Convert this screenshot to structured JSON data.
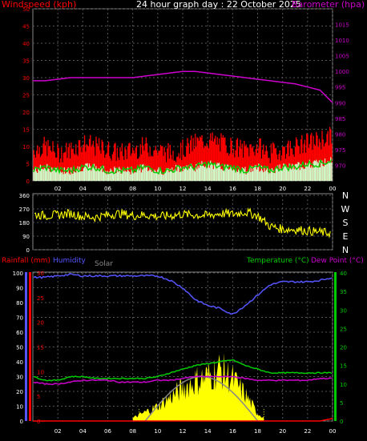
{
  "header": {
    "title": "24 hour graph day : 22 October 2025",
    "left_label": "Windspeed (kph)",
    "right_label": "Barometer (hpa)"
  },
  "colors": {
    "wind_gust": "#ff0000",
    "wind_avg": "#00cc00",
    "wind_min": "#ccffcc",
    "barometer": "#cc00cc",
    "direction": "#ffff00",
    "rain": "#ff0000",
    "humidity": "#5555ff",
    "solar": "#ffff00",
    "solar_max": "#888888",
    "temperature": "#00cc00",
    "dewpoint": "#cc00cc",
    "grid": "#555555",
    "axis_text": "#ffffff"
  },
  "x_ticks": [
    "02",
    "04",
    "06",
    "08",
    "10",
    "12",
    "14",
    "16",
    "18",
    "20",
    "22",
    "00"
  ],
  "chart_data": [
    {
      "type": "line",
      "title": "24 hour graph day : 22 October 2025",
      "ylabel": "Windspeed (kph)",
      "ylabel_right": "Barometer (hpa)",
      "ylim": [
        0,
        50
      ],
      "ylim_right": [
        965,
        1020
      ],
      "yticks": [
        0,
        5,
        10,
        15,
        20,
        25,
        30,
        35,
        40,
        45,
        50
      ],
      "yticks_right": [
        970,
        975,
        980,
        985,
        990,
        995,
        1000,
        1005,
        1010,
        1015
      ],
      "x": [
        0,
        1,
        2,
        3,
        4,
        5,
        6,
        7,
        8,
        9,
        10,
        11,
        12,
        13,
        14,
        15,
        16,
        17,
        18,
        19,
        20,
        21,
        22,
        23,
        24
      ],
      "series": [
        {
          "name": "Wind gust",
          "axis": "left",
          "values": [
            9,
            10,
            8,
            9,
            11,
            10,
            9,
            8,
            9,
            10,
            9,
            8,
            9,
            11,
            12,
            11,
            10,
            9,
            10,
            8,
            9,
            10,
            11,
            12,
            13
          ]
        },
        {
          "name": "Wind avg",
          "axis": "left",
          "values": [
            3,
            4,
            3,
            3,
            4,
            4,
            3,
            3,
            3,
            4,
            3,
            3,
            4,
            4,
            5,
            4,
            4,
            3,
            4,
            3,
            4,
            4,
            5,
            5,
            6
          ]
        },
        {
          "name": "Wind min",
          "axis": "left",
          "values": [
            1,
            1,
            1,
            1,
            1,
            1,
            1,
            1,
            1,
            1,
            1,
            1,
            1,
            1,
            2,
            1,
            1,
            1,
            1,
            1,
            1,
            1,
            1,
            2,
            2
          ]
        },
        {
          "name": "Barometer",
          "axis": "right",
          "values": [
            997,
            997,
            997.5,
            998,
            998,
            998,
            998,
            998,
            998,
            998.5,
            999,
            999.5,
            1000,
            1000,
            999.5,
            999,
            998.5,
            998,
            997.5,
            997,
            996.5,
            996,
            995,
            994,
            990
          ]
        }
      ]
    },
    {
      "type": "scatter",
      "ylim": [
        0,
        360
      ],
      "yticks": [
        0,
        90,
        180,
        270,
        360
      ],
      "y_compass": [
        "N",
        "W",
        "S",
        "E",
        "N"
      ],
      "x": [
        0,
        1,
        2,
        3,
        4,
        5,
        6,
        7,
        8,
        9,
        10,
        11,
        12,
        13,
        14,
        15,
        16,
        17,
        18,
        19,
        20,
        21,
        22,
        23,
        24
      ],
      "values": [
        235,
        225,
        230,
        240,
        220,
        215,
        230,
        240,
        225,
        230,
        220,
        225,
        235,
        230,
        225,
        240,
        235,
        250,
        225,
        155,
        135,
        135,
        125,
        115,
        110
      ]
    },
    {
      "type": "line",
      "ylabel": "Rainfall (mm)",
      "ylabel_humidity": "Humidity",
      "ylabel_solar": "Solar",
      "ylabel_right": "Temperature (°C)",
      "ylabel_right2": "Dew Point (°C)",
      "ylim_rain": [
        0,
        30
      ],
      "yticks_rain": [
        0,
        5,
        10,
        15,
        20,
        25,
        30
      ],
      "ylim_humidity": [
        0,
        100
      ],
      "yticks_humidity": [
        0,
        10,
        20,
        30,
        40,
        50,
        60,
        70,
        80,
        90,
        100
      ],
      "ylim_temp": [
        0,
        40
      ],
      "yticks_temp": [
        0,
        5,
        10,
        15,
        20,
        25,
        30,
        35,
        40
      ],
      "x": [
        0,
        1,
        2,
        3,
        4,
        5,
        6,
        7,
        8,
        9,
        10,
        11,
        12,
        13,
        14,
        15,
        16,
        17,
        18,
        19,
        20,
        21,
        22,
        23,
        24
      ],
      "series": [
        {
          "name": "Humidity",
          "axis": "humidity",
          "values": [
            97,
            97,
            98,
            99,
            98,
            98,
            98,
            98,
            98,
            98,
            98,
            95,
            90,
            82,
            78,
            76,
            72,
            78,
            85,
            92,
            94,
            94,
            94,
            95,
            97
          ]
        },
        {
          "name": "Temperature",
          "axis": "temp",
          "values": [
            12,
            11,
            11,
            12,
            12,
            11.5,
            11.5,
            11.5,
            11.5,
            11.5,
            12,
            13,
            14,
            15,
            15.5,
            16,
            16.5,
            15,
            14,
            13,
            13,
            13,
            13,
            13,
            13
          ]
        },
        {
          "name": "Dew Point",
          "axis": "temp",
          "values": [
            10.5,
            10,
            10,
            10.5,
            11,
            11,
            11,
            10.5,
            10.5,
            10.5,
            11,
            11,
            11.5,
            12,
            12,
            12,
            12,
            11.5,
            11,
            11,
            11,
            11,
            11,
            11.5,
            11.5
          ]
        },
        {
          "name": "Solar",
          "axis": "humidity",
          "values": [
            0,
            0,
            0,
            0,
            0,
            0,
            0,
            0,
            2,
            6,
            10,
            16,
            22,
            27,
            30,
            35,
            28,
            18,
            5,
            0,
            0,
            0,
            0,
            0,
            0
          ]
        },
        {
          "name": "Solar max",
          "axis": "humidity",
          "values": [
            0,
            0,
            0,
            0,
            0,
            0,
            0,
            0,
            0,
            9,
            18,
            25,
            29,
            30,
            29,
            25,
            18,
            9,
            0,
            0,
            0,
            0,
            0,
            0,
            0
          ]
        },
        {
          "name": "Rainfall",
          "axis": "rain",
          "values": [
            0,
            0,
            0,
            0,
            0,
            0,
            0,
            0,
            0,
            0,
            0,
            0,
            0,
            0,
            0,
            0,
            0,
            0,
            0,
            0,
            0,
            0,
            0,
            0,
            0.5
          ]
        }
      ]
    }
  ]
}
